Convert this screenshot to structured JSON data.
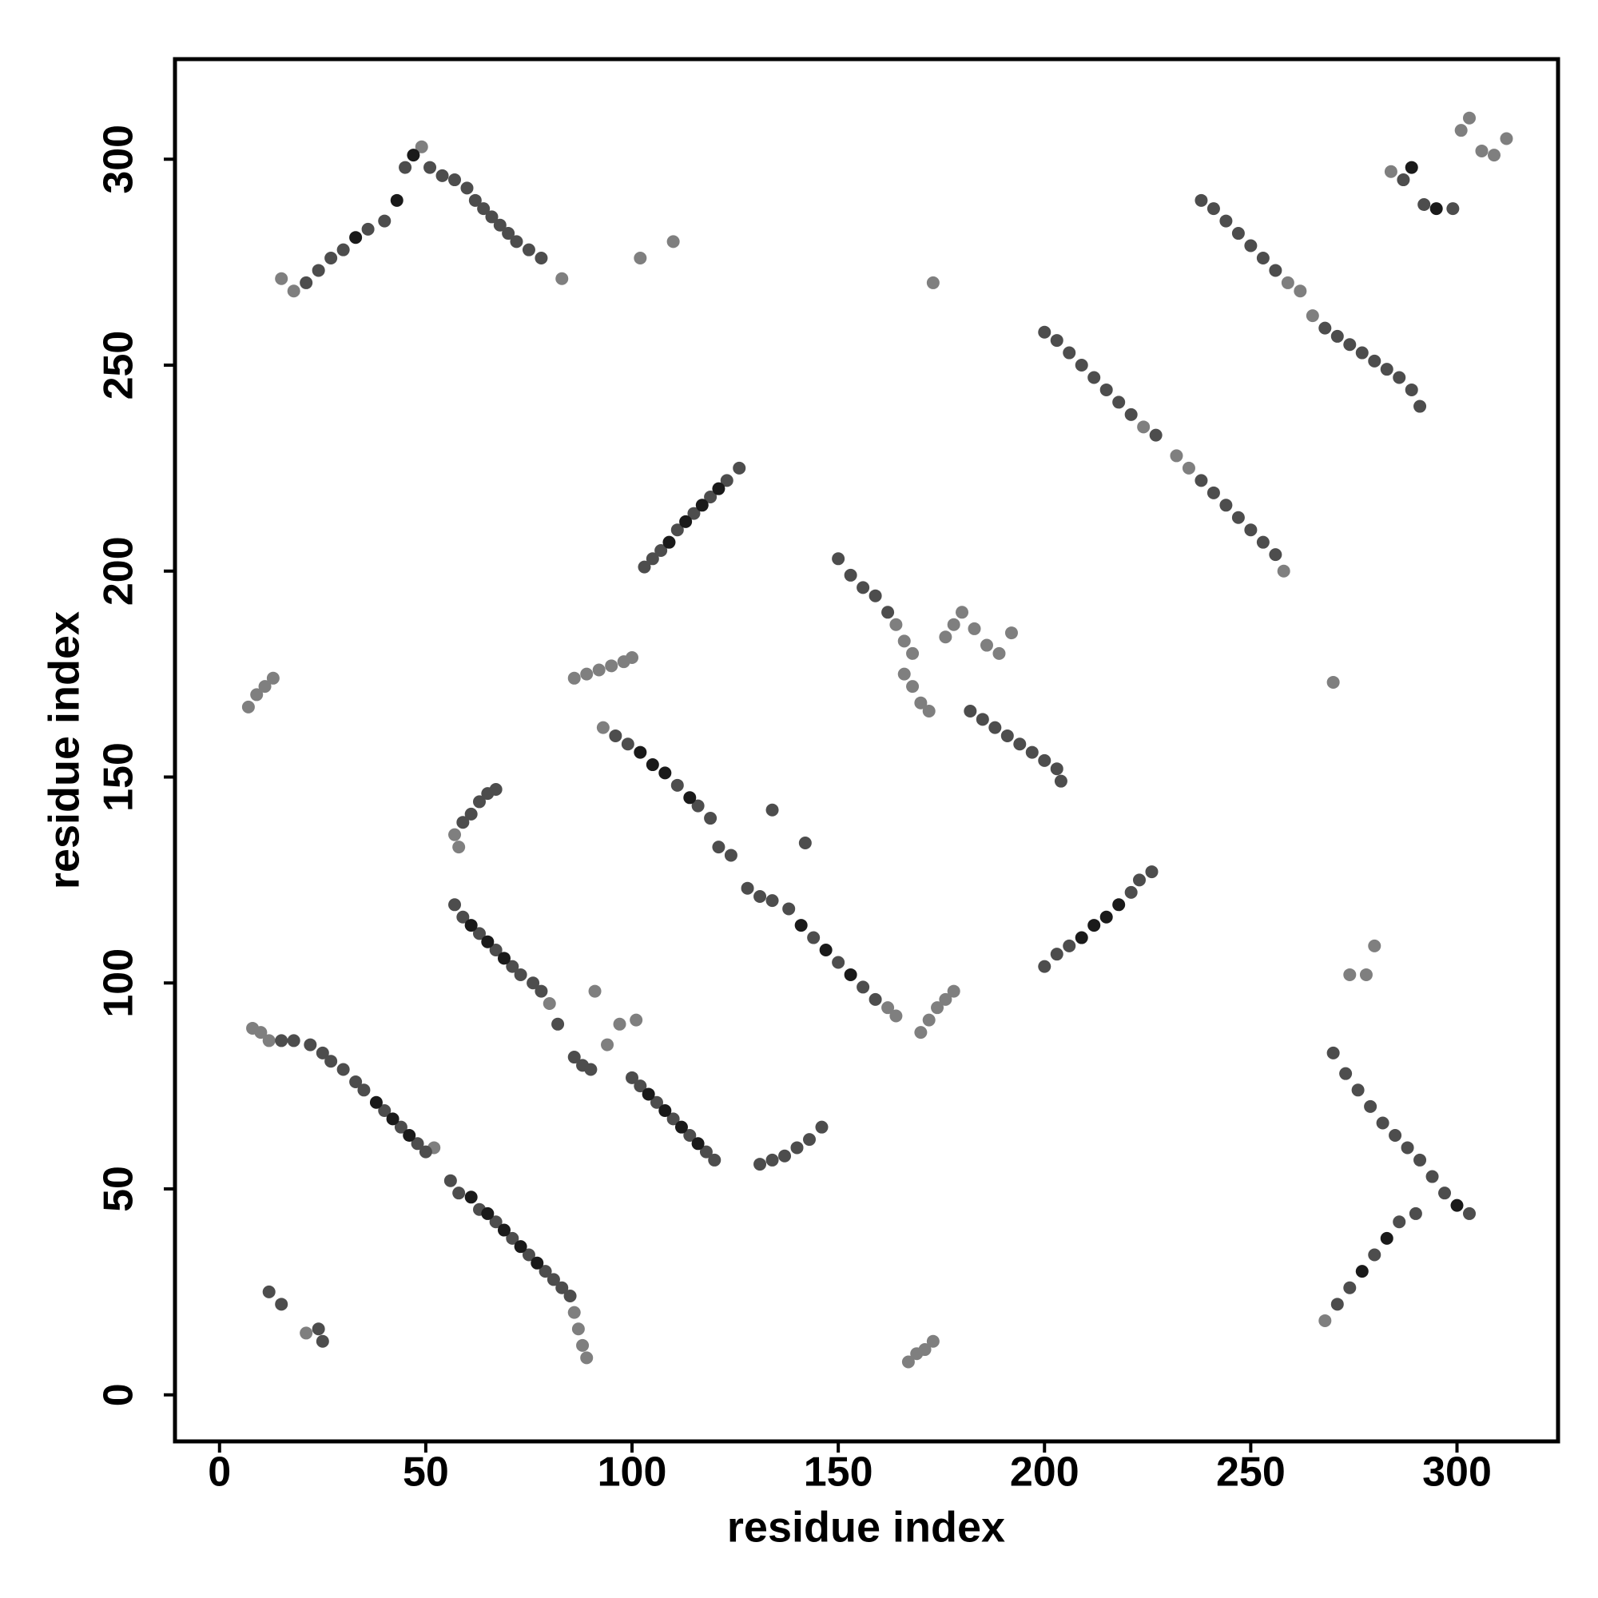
{
  "chart_data": {
    "type": "scatter",
    "xlabel": "residue index",
    "ylabel": "residue index",
    "xlim": [
      -10.8,
      324.5
    ],
    "ylim": [
      -11.3,
      324.3
    ],
    "xticks": [
      0,
      50,
      100,
      150,
      200,
      250,
      300
    ],
    "yticks": [
      0,
      50,
      100,
      150,
      200,
      250,
      300
    ],
    "series": [
      {
        "color": "#7f7f7f",
        "x": [
          8,
          10,
          12,
          86,
          87,
          88,
          89,
          52,
          80,
          94,
          93,
          162,
          164,
          166,
          168,
          170,
          172,
          176,
          178,
          180,
          183,
          186,
          189,
          192,
          164,
          166,
          168,
          232,
          235,
          224,
          258,
          259,
          262,
          265,
          15,
          18,
          49,
          83,
          57,
          58,
          86,
          89,
          92,
          95,
          98,
          100,
          7,
          9,
          11,
          13,
          21,
          167,
          169,
          171,
          173,
          170,
          172,
          174,
          176,
          178,
          268,
          301,
          303,
          306,
          309,
          312,
          284,
          102,
          110,
          173,
          270,
          280,
          274,
          278,
          91,
          97,
          101
        ],
        "values": [
          89,
          88,
          86,
          20,
          16,
          12,
          9,
          60,
          95,
          85,
          162,
          94,
          92,
          175,
          172,
          168,
          166,
          184,
          187,
          190,
          186,
          182,
          180,
          185,
          187,
          183,
          180,
          228,
          225,
          235,
          200,
          270,
          268,
          262,
          271,
          268,
          303,
          271,
          136,
          133,
          174,
          175,
          176,
          177,
          178,
          179,
          167,
          170,
          172,
          174,
          15,
          8,
          10,
          11,
          13,
          88,
          91,
          94,
          96,
          98,
          18,
          307,
          310,
          302,
          301,
          305,
          297,
          276,
          280,
          270,
          173,
          109,
          102,
          102,
          98,
          90,
          91
        ]
      },
      {
        "color": "#4d4d4d",
        "x": [
          15,
          18,
          22,
          25,
          27,
          30,
          33,
          35,
          40,
          44,
          48,
          50,
          56,
          58,
          63,
          67,
          71,
          75,
          79,
          81,
          83,
          85,
          57,
          59,
          63,
          67,
          71,
          73,
          76,
          78,
          82,
          86,
          88,
          90,
          100,
          102,
          106,
          110,
          114,
          118,
          120,
          96,
          99,
          111,
          116,
          119,
          121,
          124,
          128,
          131,
          134,
          138,
          144,
          150,
          156,
          159,
          150,
          153,
          156,
          159,
          162,
          182,
          185,
          188,
          191,
          194,
          197,
          200,
          203,
          204,
          200,
          203,
          206,
          209,
          212,
          215,
          218,
          221,
          227,
          238,
          241,
          244,
          247,
          250,
          253,
          256,
          238,
          241,
          244,
          247,
          250,
          253,
          256,
          268,
          271,
          274,
          277,
          280,
          283,
          286,
          289,
          291,
          21,
          24,
          27,
          30,
          36,
          40,
          45,
          51,
          54,
          57,
          60,
          62,
          64,
          66,
          68,
          70,
          72,
          75,
          78,
          103,
          105,
          107,
          111,
          115,
          119,
          123,
          126,
          200,
          203,
          206,
          221,
          223,
          226,
          59,
          61,
          63,
          65,
          67,
          131,
          134,
          137,
          140,
          143,
          146,
          12,
          15,
          25,
          24,
          270,
          273,
          276,
          279,
          282,
          285,
          288,
          291,
          294,
          297,
          303,
          271,
          274,
          280,
          286,
          290,
          287,
          292,
          299,
          134,
          142
        ],
        "values": [
          86,
          86,
          85,
          83,
          81,
          79,
          76,
          74,
          69,
          65,
          61,
          59,
          52,
          49,
          45,
          42,
          38,
          34,
          30,
          28,
          26,
          24,
          119,
          116,
          112,
          108,
          104,
          102,
          100,
          98,
          90,
          82,
          80,
          79,
          77,
          75,
          71,
          67,
          63,
          59,
          57,
          160,
          158,
          148,
          143,
          140,
          133,
          131,
          123,
          121,
          120,
          118,
          111,
          105,
          99,
          96,
          203,
          199,
          196,
          194,
          190,
          166,
          164,
          162,
          160,
          158,
          156,
          154,
          152,
          149,
          258,
          256,
          253,
          250,
          247,
          244,
          241,
          238,
          233,
          222,
          219,
          216,
          213,
          210,
          207,
          204,
          290,
          288,
          285,
          282,
          279,
          276,
          273,
          259,
          257,
          255,
          253,
          251,
          249,
          247,
          244,
          240,
          270,
          273,
          276,
          278,
          283,
          285,
          298,
          298,
          296,
          295,
          293,
          290,
          288,
          286,
          284,
          282,
          280,
          278,
          276,
          201,
          203,
          205,
          210,
          214,
          218,
          222,
          225,
          104,
          107,
          109,
          122,
          125,
          127,
          139,
          141,
          144,
          146,
          147,
          56,
          57,
          58,
          60,
          62,
          65,
          25,
          22,
          13,
          16,
          83,
          78,
          74,
          70,
          66,
          63,
          60,
          57,
          53,
          49,
          44,
          22,
          26,
          34,
          42,
          44,
          295,
          289,
          288,
          142,
          134
        ]
      },
      {
        "color": "#1a1a1a",
        "x": [
          38,
          42,
          46,
          61,
          65,
          69,
          73,
          77,
          61,
          65,
          69,
          104,
          108,
          112,
          116,
          102,
          105,
          108,
          114,
          141,
          147,
          153,
          109,
          113,
          117,
          121,
          209,
          212,
          215,
          218,
          300,
          283,
          277,
          289,
          295,
          43,
          47,
          33
        ],
        "values": [
          71,
          67,
          63,
          48,
          44,
          40,
          36,
          32,
          114,
          110,
          106,
          73,
          69,
          65,
          61,
          156,
          153,
          151,
          145,
          114,
          108,
          102,
          207,
          212,
          216,
          220,
          111,
          114,
          116,
          119,
          46,
          38,
          30,
          298,
          288,
          290,
          301,
          281
        ]
      }
    ]
  }
}
